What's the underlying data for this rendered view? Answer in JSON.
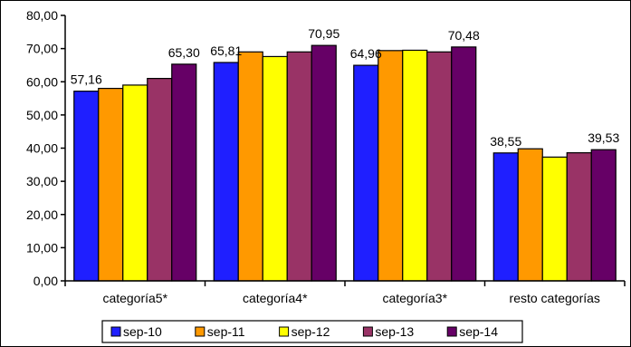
{
  "chart_data": {
    "type": "bar",
    "title": "",
    "xlabel": "",
    "ylabel": "",
    "ylim": [
      0,
      80
    ],
    "y_ticks": [
      "0,00",
      "10,00",
      "20,00",
      "30,00",
      "40,00",
      "50,00",
      "60,00",
      "70,00",
      "80,00"
    ],
    "grid": false,
    "legend_position": "bottom",
    "categories": [
      "categoría5*",
      "categoría4*",
      "categoría3*",
      "resto categorías"
    ],
    "series": [
      {
        "name": "sep-10",
        "color": "#1F1FFF",
        "values": [
          57.16,
          65.81,
          64.96,
          38.55
        ]
      },
      {
        "name": "sep-11",
        "color": "#FF9900",
        "values": [
          58.0,
          69.0,
          69.4,
          39.8
        ]
      },
      {
        "name": "sep-12",
        "color": "#FFFF00",
        "values": [
          59.0,
          67.6,
          69.5,
          37.3
        ]
      },
      {
        "name": "sep-13",
        "color": "#993366",
        "values": [
          61.0,
          69.0,
          69.0,
          38.6
        ]
      },
      {
        "name": "sep-14",
        "color": "#660066",
        "values": [
          65.3,
          70.95,
          70.48,
          39.53
        ]
      }
    ],
    "data_labels": [
      {
        "category": 0,
        "series": 0,
        "text": "57,16"
      },
      {
        "category": 0,
        "series": 4,
        "text": "65,30"
      },
      {
        "category": 1,
        "series": 0,
        "text": "65,81"
      },
      {
        "category": 1,
        "series": 4,
        "text": "70,95"
      },
      {
        "category": 2,
        "series": 0,
        "text": "64,96"
      },
      {
        "category": 2,
        "series": 4,
        "text": "70,48"
      },
      {
        "category": 3,
        "series": 0,
        "text": "38,55"
      },
      {
        "category": 3,
        "series": 4,
        "text": "39,53"
      }
    ]
  }
}
